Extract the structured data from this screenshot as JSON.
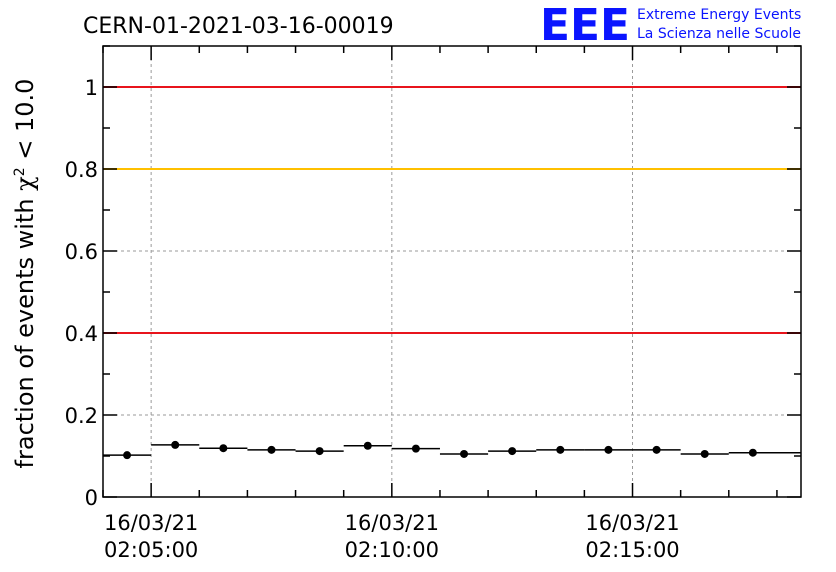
{
  "chart_data": {
    "type": "scatter",
    "title": "CERN-01-2021-03-16-00019",
    "ylabel_prefix": "fraction of events with ",
    "ylabel_symbol": "χ",
    "ylabel_sup": "2",
    "ylabel_suffix": " < 10.0",
    "xlabel": "",
    "xlim": [
      0,
      14.5
    ],
    "ylim": [
      0,
      1.1
    ],
    "grid": true,
    "y_ticks": [
      {
        "value": 0,
        "label": "0"
      },
      {
        "value": 0.2,
        "label": "0.2"
      },
      {
        "value": 0.4,
        "label": "0.4"
      },
      {
        "value": 0.6,
        "label": "0.6"
      },
      {
        "value": 0.8,
        "label": "0.8"
      },
      {
        "value": 1.0,
        "label": "1"
      }
    ],
    "x_ticks": [
      {
        "value": 1,
        "date": "16/03/21",
        "time": "02:05:00"
      },
      {
        "value": 6,
        "date": "16/03/21",
        "time": "02:10:00"
      },
      {
        "value": 11,
        "date": "16/03/21",
        "time": "02:15:00"
      }
    ],
    "reference_lines": [
      {
        "value": 1.0,
        "color": "#e8141c"
      },
      {
        "value": 0.8,
        "color": "#ffc000"
      },
      {
        "value": 0.4,
        "color": "#e8141c"
      }
    ],
    "series": [
      {
        "x_start": [
          0,
          1,
          2,
          3,
          4,
          5,
          6,
          7,
          8,
          9,
          10,
          11,
          12,
          13
        ],
        "x_end": [
          1,
          2,
          3,
          4,
          5,
          6,
          7,
          8,
          9,
          10,
          11,
          12,
          13,
          14.5
        ],
        "x_point": [
          0.5,
          1.5,
          2.5,
          3.5,
          4.5,
          5.5,
          6.5,
          7.5,
          8.5,
          9.5,
          10.5,
          11.5,
          12.5,
          13.5
        ],
        "values": [
          0.102,
          0.127,
          0.119,
          0.115,
          0.112,
          0.125,
          0.118,
          0.105,
          0.112,
          0.115,
          0.115,
          0.115,
          0.105,
          0.108
        ],
        "color": "#000000"
      }
    ]
  },
  "logo": {
    "mark": "EEE",
    "line1": "Extreme Energy Events",
    "line2": "La Scienza nelle Scuole"
  }
}
